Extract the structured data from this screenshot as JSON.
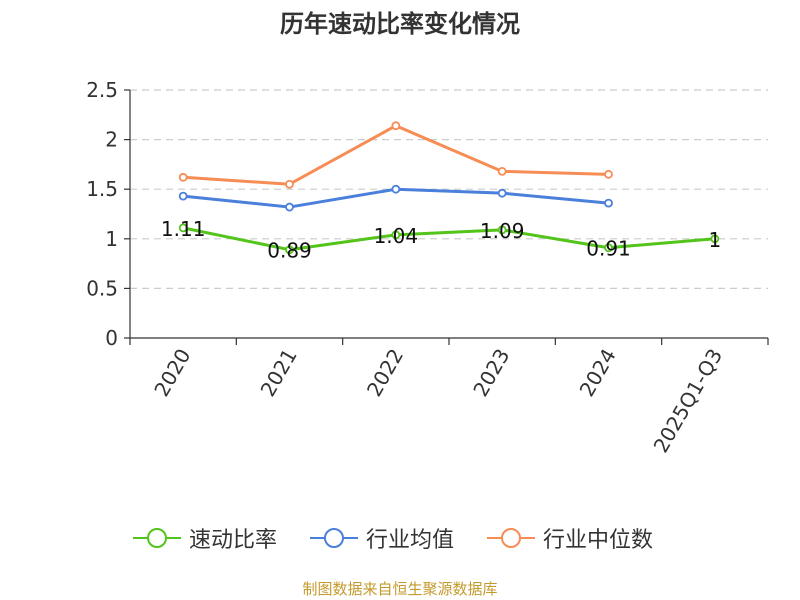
{
  "title": "历年速动比率变化情况",
  "source": "制图数据来自恒生聚源数据库",
  "colors": {
    "series": [
      "#52c41a",
      "#4a7fdc",
      "#f78c54"
    ],
    "grid": "#cccccc",
    "axis": "#333333",
    "text": "#333333",
    "source": "#c59a2c"
  },
  "chart_data": {
    "type": "line",
    "title": "历年速动比率变化情况",
    "categories": [
      "2020",
      "2021",
      "2022",
      "2023",
      "2024",
      "2025Q1-Q3"
    ],
    "ylim": [
      0,
      2.5
    ],
    "yticks": [
      0,
      0.5,
      1,
      1.5,
      2,
      2.5
    ],
    "ytick_labels": [
      "0",
      "0.5",
      "1",
      "1.5",
      "2",
      "2.5"
    ],
    "grid": true,
    "legend_position": "bottom",
    "xlabel": "",
    "ylabel": "",
    "series": [
      {
        "name": "速动比率",
        "values": [
          1.11,
          0.89,
          1.04,
          1.09,
          0.91,
          1.0
        ],
        "labels": [
          "1.11",
          "0.89",
          "1.04",
          "1.09",
          "0.91",
          "1"
        ]
      },
      {
        "name": "行业均值",
        "values": [
          1.43,
          1.32,
          1.5,
          1.46,
          1.36,
          null
        ]
      },
      {
        "name": "行业中位数",
        "values": [
          1.62,
          1.55,
          2.14,
          1.68,
          1.65,
          null
        ]
      }
    ]
  }
}
